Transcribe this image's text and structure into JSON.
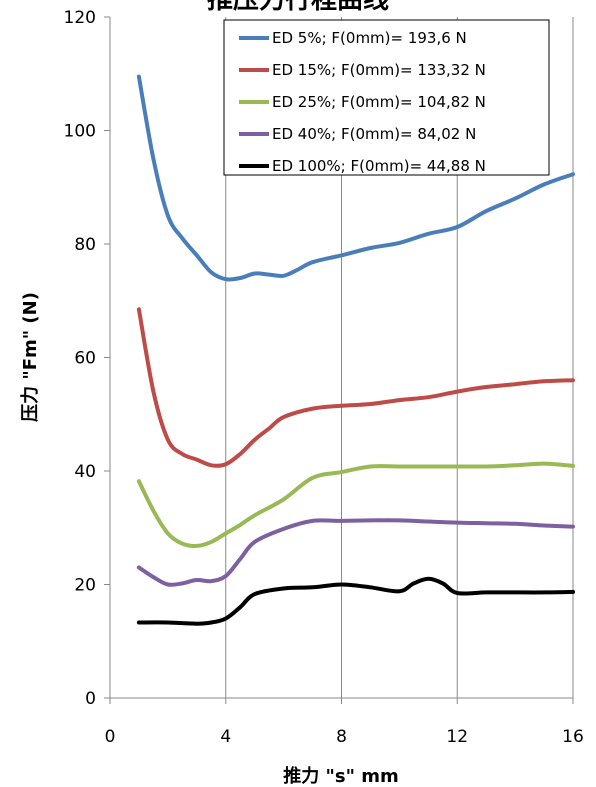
{
  "chart_data": {
    "type": "line",
    "title": "推压力行程曲线",
    "xlabel": "推力  \"s\" mm",
    "ylabel": "压力  \"Fm\" (N)",
    "xlim": [
      0,
      16
    ],
    "ylim": [
      0,
      120
    ],
    "xticks": [
      0,
      4,
      8,
      12,
      16
    ],
    "yticks": [
      0,
      20,
      40,
      60,
      80,
      100,
      120
    ],
    "grid": "vertical",
    "legend_position": "top-right",
    "series": [
      {
        "name": "ED 5%; F(0mm)= 193,6 N",
        "color": "#4a7ebb",
        "x": [
          1,
          1.5,
          2,
          2.5,
          3,
          3.5,
          4,
          4.5,
          5,
          5.5,
          6,
          6.5,
          7,
          8,
          9,
          10,
          11,
          12,
          13,
          14,
          15,
          16
        ],
        "y": [
          109.5,
          95,
          85,
          81,
          78,
          75,
          73.8,
          74,
          74.8,
          74.6,
          74.4,
          75.5,
          76.8,
          78,
          79.3,
          80.2,
          81.8,
          83,
          85.8,
          88,
          90.5,
          92.3
        ]
      },
      {
        "name": "ED 15%; F(0mm)= 133,32 N",
        "color": "#be4b48",
        "x": [
          1,
          1.5,
          2,
          2.5,
          3,
          3.5,
          4,
          4.5,
          5,
          5.5,
          6,
          7,
          8,
          9,
          10,
          11,
          12,
          13,
          14,
          15,
          16
        ],
        "y": [
          68.5,
          54,
          45.5,
          43,
          42,
          41,
          41.2,
          43,
          45.5,
          47.5,
          49.5,
          51,
          51.5,
          51.8,
          52.5,
          53,
          54,
          54.8,
          55.3,
          55.8,
          56
        ]
      },
      {
        "name": "ED 25%; F(0mm)= 104,82 N",
        "color": "#98b954",
        "x": [
          1,
          1.5,
          2,
          2.5,
          3,
          3.5,
          4,
          4.5,
          5,
          6,
          7,
          8,
          9,
          10,
          11,
          12,
          13,
          14,
          15,
          16
        ],
        "y": [
          38.2,
          33,
          29,
          27.2,
          26.8,
          27.5,
          29,
          30.5,
          32.2,
          35,
          38.8,
          39.8,
          40.8,
          40.8,
          40.8,
          40.8,
          40.8,
          41,
          41.3,
          40.9
        ]
      },
      {
        "name": "ED 40%; F(0mm)= 84,02 N",
        "color": "#7d60a0",
        "x": [
          1,
          1.5,
          2,
          2.5,
          3,
          3.5,
          4,
          4.5,
          5,
          6,
          7,
          8,
          9,
          10,
          11,
          12,
          13,
          14,
          15,
          16
        ],
        "y": [
          23,
          21.3,
          20,
          20.2,
          20.8,
          20.6,
          21.5,
          24.5,
          27.5,
          29.8,
          31.2,
          31.2,
          31.3,
          31.3,
          31.1,
          30.9,
          30.8,
          30.7,
          30.4,
          30.2
        ]
      },
      {
        "name": "ED 100%; F(0mm)= 44,88 N",
        "color": "#000000",
        "x": [
          1,
          2,
          3,
          3.5,
          4,
          4.5,
          5,
          6,
          7,
          8,
          9,
          10,
          10.5,
          11,
          11.5,
          12,
          13,
          14,
          15,
          16
        ],
        "y": [
          13.3,
          13.3,
          13.1,
          13.3,
          14,
          16,
          18.3,
          19.3,
          19.5,
          20,
          19.5,
          18.8,
          20.2,
          21,
          20.2,
          18.5,
          18.6,
          18.6,
          18.6,
          18.7
        ]
      }
    ]
  }
}
